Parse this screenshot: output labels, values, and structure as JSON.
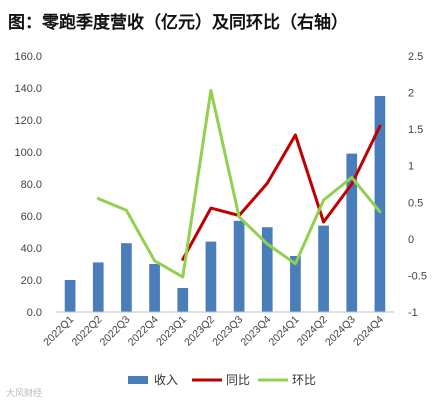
{
  "chart_data": {
    "type": "bar",
    "title": "图：零跑季度营收（亿元）及同环比（右轴）",
    "categories": [
      "2022Q1",
      "2022Q2",
      "2022Q3",
      "2022Q4",
      "2023Q1",
      "2023Q2",
      "2023Q3",
      "2023Q4",
      "2024Q1",
      "2024Q2",
      "2024Q3",
      "2024Q4"
    ],
    "y_left": {
      "lim": [
        0,
        160
      ],
      "ticks": [
        "0.0",
        "20.0",
        "40.0",
        "60.0",
        "80.0",
        "100.0",
        "120.0",
        "140.0",
        "160.0"
      ]
    },
    "y_right": {
      "lim": [
        -1,
        2.5
      ],
      "ticks": [
        "-1",
        "-0.5",
        "0",
        "0.5",
        "1",
        "1.5",
        "2",
        "2.5"
      ]
    },
    "grid": false,
    "legend_position": "bottom",
    "series": [
      {
        "name": "收入",
        "type": "bar",
        "axis": "left",
        "color": "#4a7ebb",
        "values": [
          20,
          31,
          43,
          30,
          15,
          44,
          57,
          53,
          35,
          54,
          99,
          135
        ]
      },
      {
        "name": "同比",
        "type": "line",
        "axis": "right",
        "color": "#c00000",
        "values": [
          null,
          null,
          null,
          null,
          -0.28,
          0.42,
          0.32,
          0.76,
          1.42,
          0.23,
          0.75,
          1.54
        ]
      },
      {
        "name": "环比",
        "type": "line",
        "axis": "right",
        "color": "#92d050",
        "values": [
          null,
          0.55,
          0.39,
          -0.3,
          -0.52,
          2.03,
          0.3,
          -0.07,
          -0.34,
          0.53,
          0.84,
          0.37
        ]
      }
    ]
  },
  "watermark": "大风财经"
}
